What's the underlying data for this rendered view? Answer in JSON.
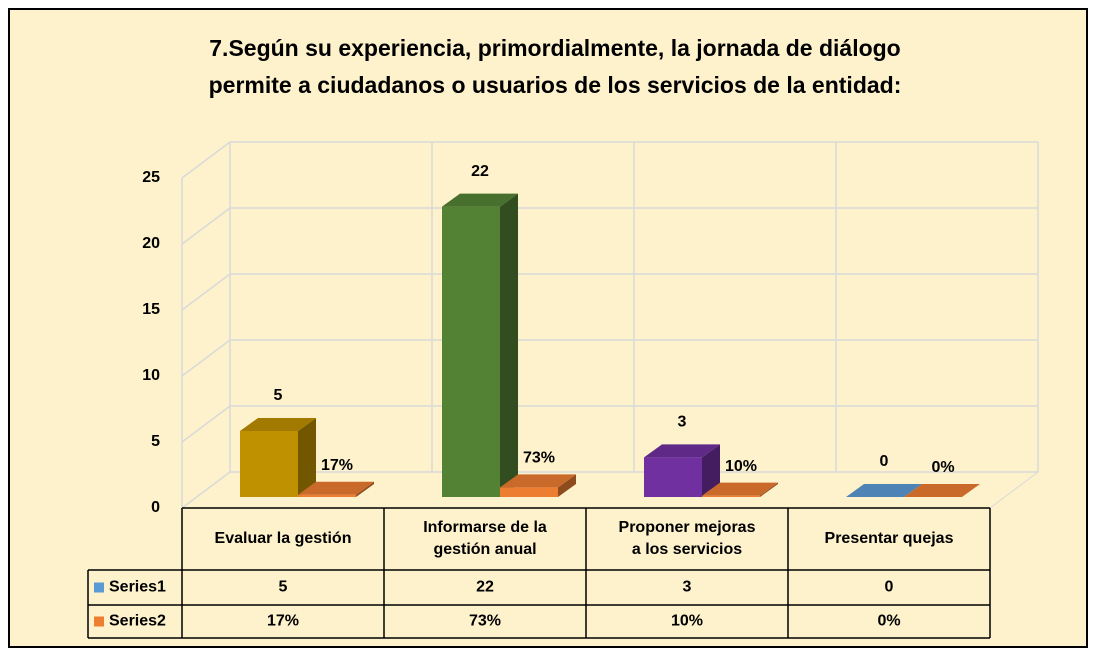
{
  "chart_data": {
    "type": "bar",
    "title": [
      "7.Según su experiencia, primordialmente, la jornada de diálogo",
      "permite a ciudadanos o usuarios de los servicios de la entidad:"
    ],
    "categories": [
      [
        "Evaluar la gestión"
      ],
      [
        "Informarse de la",
        "gestión anual"
      ],
      [
        "Proponer mejoras",
        "a los servicios"
      ],
      [
        "Presentar quejas"
      ]
    ],
    "series": [
      {
        "name": "Series1",
        "color": "#5b9bd5",
        "colors": [
          "#bf9000",
          "#548235",
          "#7030a0",
          "#5b9bd5"
        ],
        "values": [
          5,
          22,
          3,
          0
        ]
      },
      {
        "name": "Series2",
        "color": "#ed7d31",
        "values": [
          0.17,
          0.73,
          0.1,
          0
        ],
        "value_labels": [
          "17%",
          "73%",
          "10%",
          "0%"
        ]
      }
    ],
    "ylim": [
      0,
      25
    ],
    "yticks": [
      0,
      5,
      10,
      15,
      20,
      25
    ],
    "grid": true,
    "data_table": true
  }
}
